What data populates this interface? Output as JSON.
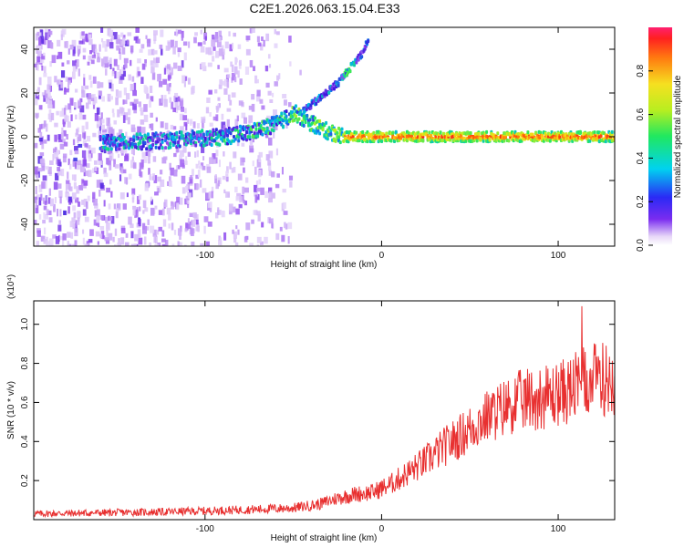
{
  "title": "C2E1.2026.063.15.04.E33",
  "colors": {
    "snr_line": "#e83030",
    "frame": "#000000",
    "background": "#ffffff"
  },
  "chart_data": [
    {
      "type": "heatmap",
      "name": "spectrogram",
      "xlabel": "Height of straight line (km)",
      "ylabel": "Frequency (Hz)",
      "xlim": [
        -197,
        132
      ],
      "ylim": [
        -50,
        50
      ],
      "xticks": [
        -100,
        0,
        100
      ],
      "yticks": [
        -40,
        -20,
        0,
        20,
        40
      ],
      "colorbar": {
        "label": "Normalized spectral amplitude",
        "range": [
          0.0,
          1.0
        ],
        "ticks": [
          0.0,
          0.2,
          0.4,
          0.6,
          0.8
        ]
      },
      "features": {
        "noise_region_x": [
          -197,
          -45
        ],
        "main_trace": [
          {
            "x": -160,
            "y": -3
          },
          {
            "x": -130,
            "y": -2
          },
          {
            "x": -110,
            "y": -1
          },
          {
            "x": -90,
            "y": 0
          },
          {
            "x": -75,
            "y": 2
          },
          {
            "x": -60,
            "y": 6
          },
          {
            "x": -50,
            "y": 11
          },
          {
            "x": -45,
            "y": 8
          },
          {
            "x": -38,
            "y": 5
          },
          {
            "x": -30,
            "y": 2
          },
          {
            "x": -20,
            "y": 0
          },
          {
            "x": 0,
            "y": 0
          },
          {
            "x": 132,
            "y": 0
          }
        ],
        "rising_branch": [
          {
            "x": -45,
            "y": 12
          },
          {
            "x": -35,
            "y": 18
          },
          {
            "x": -25,
            "y": 25
          },
          {
            "x": -18,
            "y": 32
          },
          {
            "x": -12,
            "y": 38
          },
          {
            "x": -8,
            "y": 45
          }
        ]
      }
    },
    {
      "type": "line",
      "name": "snr",
      "xlabel": "Height of straight line (km)",
      "ylabel": "SNR (10 * v/v)",
      "y_multiplier": "(x10⁴)",
      "xlim": [
        -197,
        132
      ],
      "ylim": [
        0,
        1.12
      ],
      "xticks": [
        -100,
        0,
        100
      ],
      "yticks": [
        0.2,
        0.4,
        0.6,
        0.8,
        1.0
      ],
      "series": [
        {
          "name": "SNR",
          "x": [
            -197,
            -160,
            -120,
            -80,
            -50,
            -35,
            -25,
            -15,
            -5,
            5,
            15,
            25,
            35,
            45,
            55,
            65,
            75,
            85,
            95,
            105,
            115,
            122,
            132
          ],
          "values": [
            0.03,
            0.035,
            0.04,
            0.05,
            0.06,
            0.08,
            0.11,
            0.13,
            0.14,
            0.18,
            0.24,
            0.3,
            0.37,
            0.43,
            0.5,
            0.55,
            0.6,
            0.62,
            0.63,
            0.66,
            0.7,
            0.72,
            0.72
          ]
        }
      ]
    }
  ]
}
